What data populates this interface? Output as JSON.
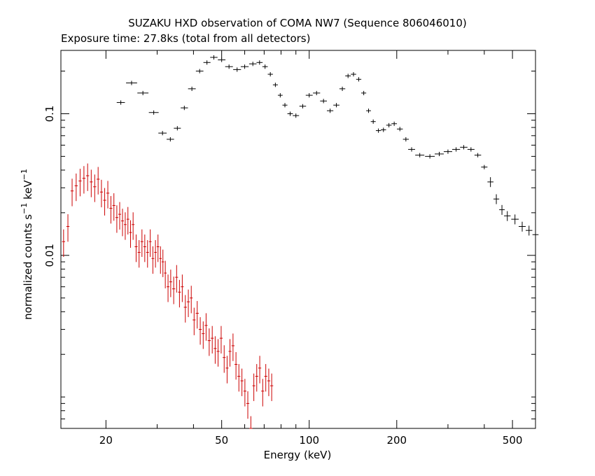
{
  "chart_data": {
    "type": "scatter",
    "title": "SUZAKU HXD observation of COMA NW7 (Sequence 806046010)",
    "subtitle": "Exposure time: 27.8ks (total from all detectors)",
    "xlabel": "Energy (keV)",
    "ylabel": "normalized counts s",
    "ylabel_sup1": "−1",
    "ylabel_mid": " keV",
    "ylabel_sup2": "−1",
    "x_scale": "log",
    "y_scale": "log",
    "xlim": [
      14,
      600
    ],
    "ylim": [
      0.0006,
      0.28
    ],
    "x_ticks": [
      20,
      50,
      100,
      200,
      500
    ],
    "y_ticks": [
      0.01,
      0.1
    ],
    "grid": false,
    "series": [
      {
        "color": "#000000",
        "style": "crosses",
        "x": [
          22.5,
          24.5,
          26.8,
          29.2,
          31.3,
          33.3,
          35.2,
          37.2,
          39.5,
          42.0,
          44.5,
          47.0,
          50.0,
          53.0,
          56.5,
          60.0,
          64.0,
          67.5,
          70.5,
          73.5,
          76.5,
          79.5,
          82.5,
          86.0,
          90.0,
          95.0,
          100.0,
          106.0,
          112.0,
          118.0,
          124.0,
          130.0,
          136.0,
          142.0,
          148.0,
          154.0,
          160.0,
          166.0,
          173.0,
          180.0,
          188.0,
          196.0,
          205.0,
          215.0,
          225.0,
          240.0,
          260.0,
          280.0,
          300.0,
          320.0,
          340.0,
          360.0,
          380.0,
          400.0,
          420.0,
          440.0,
          460.0,
          480.0,
          510.0,
          540.0,
          570.0,
          600.0
        ],
        "y": [
          0.12,
          0.165,
          0.14,
          0.102,
          0.073,
          0.066,
          0.079,
          0.11,
          0.15,
          0.2,
          0.23,
          0.25,
          0.24,
          0.215,
          0.205,
          0.215,
          0.225,
          0.23,
          0.215,
          0.19,
          0.16,
          0.135,
          0.115,
          0.1,
          0.097,
          0.113,
          0.135,
          0.14,
          0.123,
          0.105,
          0.115,
          0.15,
          0.185,
          0.19,
          0.175,
          0.14,
          0.105,
          0.088,
          0.076,
          0.077,
          0.083,
          0.085,
          0.078,
          0.066,
          0.056,
          0.051,
          0.05,
          0.052,
          0.054,
          0.056,
          0.058,
          0.056,
          0.051,
          0.042,
          0.033,
          0.025,
          0.021,
          0.019,
          0.018,
          0.016,
          0.015,
          0.014
        ]
      },
      {
        "color": "#cc0000",
        "style": "crosses",
        "x": [
          14.3,
          14.8,
          15.3,
          15.8,
          16.3,
          16.8,
          17.3,
          17.8,
          18.3,
          18.8,
          19.3,
          19.8,
          20.3,
          20.8,
          21.3,
          21.8,
          22.3,
          22.8,
          23.3,
          23.8,
          24.3,
          24.8,
          25.4,
          26.0,
          26.6,
          27.2,
          27.8,
          28.4,
          29.0,
          29.6,
          30.2,
          30.8,
          31.4,
          32.0,
          32.7,
          33.4,
          34.2,
          35.0,
          35.8,
          36.6,
          37.5,
          38.4,
          39.3,
          40.2,
          41.2,
          42.2,
          43.2,
          44.2,
          45.3,
          46.4,
          47.5,
          48.6,
          49.8,
          51.0,
          52.2,
          53.4,
          54.7,
          56.0,
          57.3,
          58.7,
          60.1,
          61.5,
          63.0,
          64.5,
          66.0,
          67.6,
          69.2,
          70.9,
          72.6,
          74.3
        ],
        "y": [
          0.0125,
          0.016,
          0.0285,
          0.031,
          0.0335,
          0.035,
          0.0365,
          0.033,
          0.0305,
          0.0345,
          0.028,
          0.0245,
          0.0275,
          0.0215,
          0.0225,
          0.0185,
          0.0195,
          0.0175,
          0.0165,
          0.018,
          0.0145,
          0.0165,
          0.0115,
          0.0105,
          0.0125,
          0.0115,
          0.0105,
          0.0125,
          0.0095,
          0.0105,
          0.0115,
          0.0095,
          0.009,
          0.0075,
          0.006,
          0.0065,
          0.0058,
          0.007,
          0.0055,
          0.006,
          0.0043,
          0.0047,
          0.005,
          0.0035,
          0.0039,
          0.003,
          0.0028,
          0.0032,
          0.0025,
          0.0026,
          0.0022,
          0.0021,
          0.0026,
          0.0019,
          0.0016,
          0.0021,
          0.0023,
          0.0017,
          0.0014,
          0.0013,
          0.0011,
          0.0009,
          0.0006,
          0.0012,
          0.0014,
          0.0016,
          0.0011,
          0.0014,
          0.0013,
          0.0012
        ]
      }
    ]
  }
}
